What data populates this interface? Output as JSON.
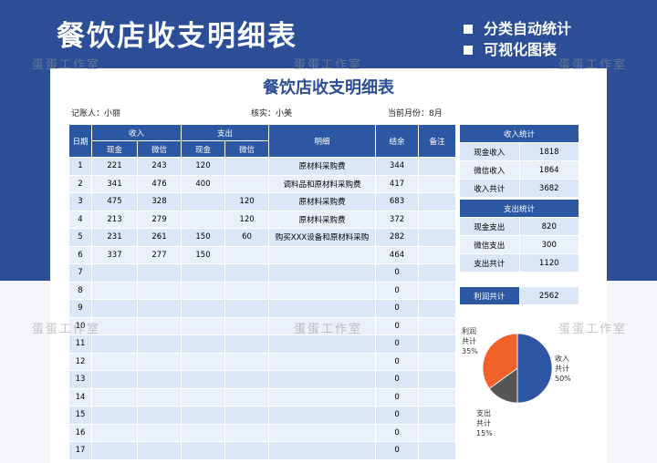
{
  "header": {
    "title": "餐饮店收支明细表",
    "features": [
      "分类自动统计",
      "可视化图表"
    ]
  },
  "watermark": "蛋蛋工作室",
  "sheet": {
    "title": "餐饮店收支明细表",
    "info": [
      "记账人：小丽",
      "核实：小美",
      "当前月份：8月"
    ]
  },
  "table": {
    "date": "日期",
    "income": "收入",
    "expense": "支出",
    "detail": "明细",
    "balance": "结余",
    "note": "备注",
    "sub": [
      "现金",
      "微信",
      "现金",
      "微信"
    ],
    "rows": [
      [
        1,
        221,
        243,
        120,
        null,
        "原材料采购费",
        344,
        null
      ],
      [
        2,
        341,
        476,
        400,
        null,
        "调料品和原材料采购费",
        417,
        null
      ],
      [
        3,
        475,
        328,
        null,
        120,
        "原材料采购费",
        683,
        null
      ],
      [
        4,
        213,
        279,
        null,
        120,
        "原材料采购费",
        372,
        null
      ],
      [
        5,
        231,
        261,
        150,
        60,
        "购买XXX设备和原材料采购",
        282,
        null
      ],
      [
        6,
        337,
        277,
        150,
        null,
        null,
        464,
        null
      ],
      [
        7,
        null,
        null,
        null,
        null,
        null,
        0,
        null
      ],
      [
        8,
        null,
        null,
        null,
        null,
        null,
        0,
        null
      ],
      [
        9,
        null,
        null,
        null,
        null,
        null,
        0,
        null
      ],
      [
        10,
        null,
        null,
        null,
        null,
        null,
        0,
        null
      ],
      [
        11,
        null,
        null,
        null,
        null,
        null,
        0,
        null
      ],
      [
        12,
        null,
        null,
        null,
        null,
        null,
        0,
        null
      ],
      [
        13,
        null,
        null,
        null,
        null,
        null,
        0,
        null
      ],
      [
        14,
        null,
        null,
        null,
        null,
        null,
        0,
        null
      ],
      [
        15,
        null,
        null,
        null,
        null,
        null,
        0,
        null
      ],
      [
        16,
        null,
        null,
        null,
        null,
        null,
        0,
        null
      ],
      [
        17,
        null,
        null,
        null,
        null,
        null,
        0,
        null
      ]
    ]
  },
  "summary": {
    "income": {
      "title": "收入统计",
      "items": [
        {
          "label": "现金收入",
          "value": 1818
        },
        {
          "label": "微信收入",
          "value": 1864
        },
        {
          "label": "收入共计",
          "value": 3682
        }
      ]
    },
    "expense": {
      "title": "支出统计",
      "items": [
        {
          "label": "现金支出",
          "value": 820
        },
        {
          "label": "微信支出",
          "value": 300
        },
        {
          "label": "支出共计",
          "value": 1120
        }
      ]
    },
    "profit": {
      "label": "利润共计",
      "value": 2562
    }
  },
  "chart_data": {
    "type": "pie",
    "categories": [
      "收入共计",
      "支出共计",
      "利润共计"
    ],
    "values": [
      50,
      15,
      35
    ],
    "value_labels": [
      "50%",
      "15%",
      "35%"
    ],
    "colors": [
      "#2d56a3",
      "#565656",
      "#f0622a"
    ]
  }
}
